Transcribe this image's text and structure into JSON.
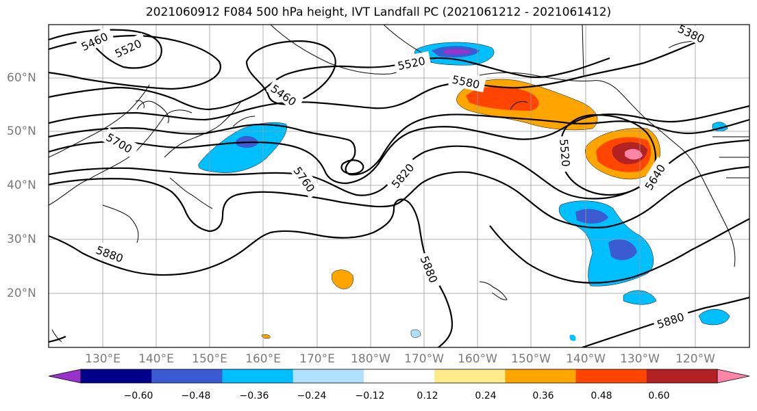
{
  "title": "2021060912 F084 500 hPa height, IVT Landfall PC (2021061212 - 2021061412)",
  "lat_labels": [
    "60°N",
    "50°N",
    "40°N",
    "30°N",
    "20°N"
  ],
  "lon_labels": [
    "130°E",
    "140°E",
    "150°E",
    "160°E",
    "170°E",
    "180°W",
    "170°W",
    "160°W",
    "150°W",
    "140°W",
    "130°W",
    "120°W"
  ],
  "contour_labels": {
    "c5460a": "5460",
    "c5520a": "5520",
    "c5460b": "5460",
    "c5520b": "5520",
    "c5580": "5580",
    "c5380": "5380",
    "c5700": "5700",
    "c5760": "5760",
    "c5820": "5820",
    "c5520c": "5520",
    "c5640": "5640",
    "c5880a": "5880",
    "c5880b": "5880",
    "c5880c": "5880"
  },
  "colorbar": {
    "ticks": [
      "−0.60",
      "−0.48",
      "−0.36",
      "−0.24",
      "−0.12",
      "0.12",
      "0.24",
      "0.36",
      "0.48",
      "0.60"
    ],
    "colors": [
      "#9932cc",
      "#00008b",
      "#3a5bd1",
      "#00bfff",
      "#b0e0ff",
      "#ffffff",
      "#ffeb8a",
      "#ffa500",
      "#ff4500",
      "#b22222",
      "#ff85a8"
    ]
  }
}
